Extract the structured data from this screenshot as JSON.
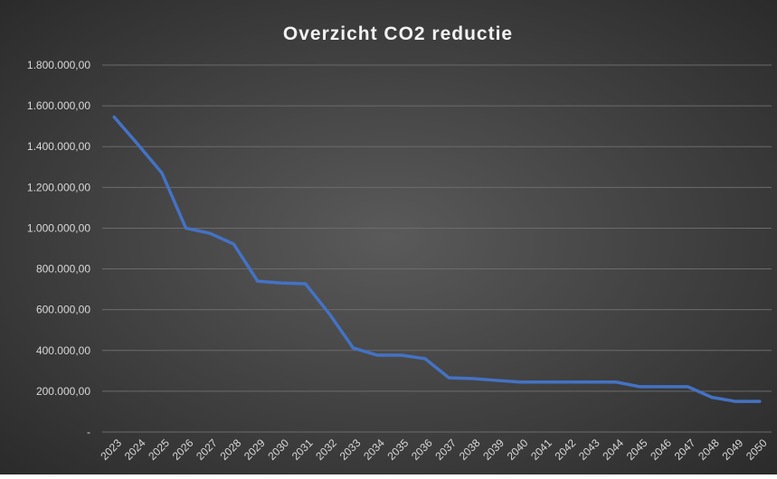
{
  "chart_data": {
    "type": "line",
    "title": "Overzicht CO2 reductie",
    "categories": [
      "2023",
      "2024",
      "2025",
      "2026",
      "2027",
      "2028",
      "2029",
      "2030",
      "2031",
      "2032",
      "2033",
      "2034",
      "2035",
      "2036",
      "2037",
      "2038",
      "2039",
      "2040",
      "2041",
      "2042",
      "2043",
      "2044",
      "2045",
      "2046",
      "2047",
      "2048",
      "2049",
      "2050"
    ],
    "series": [
      {
        "name": "CO2",
        "color": "#4472c4",
        "values": [
          1545000,
          1410000,
          1270000,
          1000000,
          975000,
          922000,
          740000,
          731000,
          727000,
          580000,
          412000,
          377000,
          377000,
          360000,
          266000,
          262000,
          253000,
          245000,
          245000,
          245000,
          245000,
          245000,
          222000,
          222000,
          222000,
          170000,
          150000,
          150000
        ]
      }
    ],
    "ylim": [
      0,
      1800000
    ],
    "yticks": [
      {
        "value": 0,
        "label": "-"
      },
      {
        "value": 200000,
        "label": "200.000,00"
      },
      {
        "value": 400000,
        "label": "400.000,00"
      },
      {
        "value": 600000,
        "label": "600.000,00"
      },
      {
        "value": 800000,
        "label": "800.000,00"
      },
      {
        "value": 1000000,
        "label": "1.000.000,00"
      },
      {
        "value": 1200000,
        "label": "1.200.000,00"
      },
      {
        "value": 1400000,
        "label": "1.400.000,00"
      },
      {
        "value": 1600000,
        "label": "1.600.000,00"
      },
      {
        "value": 1800000,
        "label": "1.800.000,00"
      }
    ],
    "grid": true
  }
}
